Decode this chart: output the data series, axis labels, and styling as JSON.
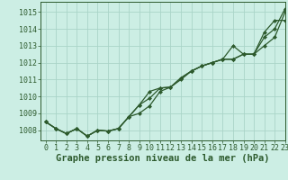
{
  "xlabel": "Graphe pression niveau de la mer (hPa)",
  "xlim": [
    -0.5,
    23
  ],
  "ylim": [
    1007.4,
    1015.6
  ],
  "yticks": [
    1008,
    1009,
    1010,
    1011,
    1012,
    1013,
    1014,
    1015
  ],
  "xticks": [
    0,
    1,
    2,
    3,
    4,
    5,
    6,
    7,
    8,
    9,
    10,
    11,
    12,
    13,
    14,
    15,
    16,
    17,
    18,
    19,
    20,
    21,
    22,
    23
  ],
  "bg_color": "#cceee4",
  "grid_color": "#aad4c8",
  "line_color": "#2d5a2d",
  "series": [
    {
      "y": [
        1008.5,
        1008.1,
        1007.8,
        1008.1,
        1007.65,
        1008.0,
        1007.95,
        1008.1,
        1008.8,
        1009.5,
        1010.3,
        1010.5,
        1010.55,
        1011.1,
        1011.5,
        1011.8,
        1012.0,
        1012.2,
        1012.2,
        1012.5,
        1012.5,
        1013.5,
        1014.0,
        1015.2
      ],
      "marker": true
    },
    {
      "y": [
        1008.5,
        1008.1,
        1007.8,
        1008.1,
        1007.65,
        1008.0,
        1007.95,
        1008.1,
        1008.8,
        1009.0,
        1009.45,
        1010.3,
        1010.55,
        1011.0,
        1011.5,
        1011.8,
        1012.0,
        1012.2,
        1013.0,
        1012.5,
        1012.5,
        1013.0,
        1013.5,
        1015.0
      ],
      "marker": true
    },
    {
      "y": [
        1008.5,
        1008.1,
        1007.8,
        1008.1,
        1007.65,
        1008.0,
        1007.95,
        1008.1,
        1008.8,
        1009.5,
        1009.9,
        1010.5,
        1010.55,
        1011.1,
        1011.5,
        1011.8,
        1012.0,
        1012.2,
        1012.2,
        1012.5,
        1012.5,
        1013.8,
        1014.5,
        1014.5
      ],
      "marker": true
    }
  ],
  "font_family": "monospace",
  "tick_fontsize": 6,
  "label_fontsize": 7.5,
  "marker_style": "D",
  "marker_size": 2.0,
  "linewidth": 0.9
}
